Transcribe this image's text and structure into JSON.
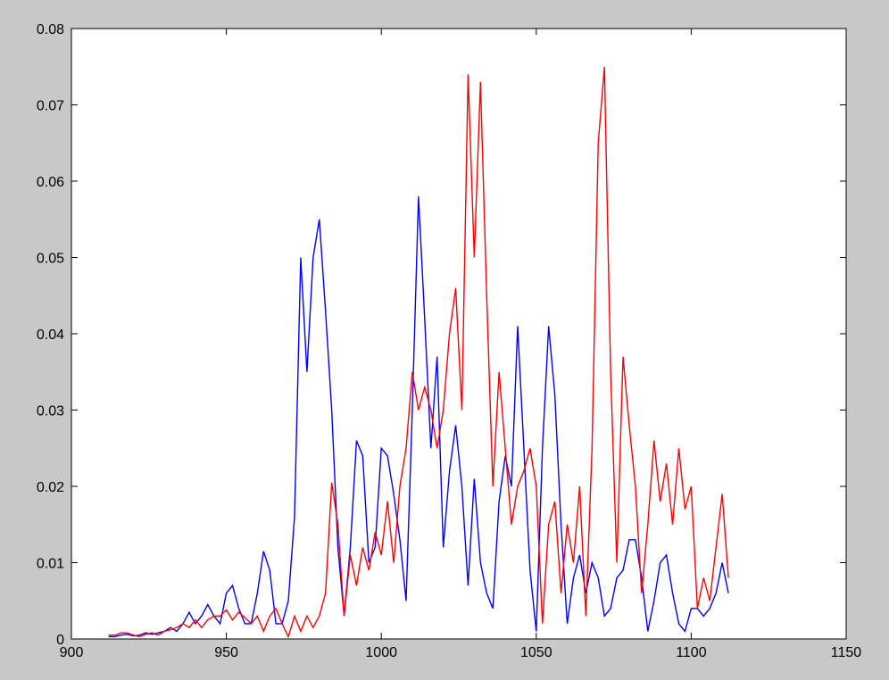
{
  "chart_data": {
    "type": "line",
    "x": [
      912,
      914,
      916,
      918,
      920,
      922,
      924,
      926,
      928,
      930,
      932,
      934,
      936,
      938,
      940,
      942,
      944,
      946,
      948,
      950,
      952,
      954,
      956,
      958,
      960,
      962,
      964,
      966,
      968,
      970,
      972,
      974,
      976,
      978,
      980,
      982,
      984,
      986,
      988,
      990,
      992,
      994,
      996,
      998,
      1000,
      1002,
      1004,
      1006,
      1008,
      1010,
      1012,
      1014,
      1016,
      1018,
      1020,
      1022,
      1024,
      1026,
      1028,
      1030,
      1032,
      1034,
      1036,
      1038,
      1040,
      1042,
      1044,
      1046,
      1048,
      1050,
      1052,
      1054,
      1056,
      1058,
      1060,
      1062,
      1064,
      1066,
      1068,
      1070,
      1072,
      1074,
      1076,
      1078,
      1080,
      1082,
      1084,
      1086,
      1088,
      1090,
      1092,
      1094,
      1096,
      1098,
      1100,
      1102,
      1104,
      1106,
      1108,
      1110,
      1112
    ],
    "series": [
      {
        "color": "#0000ff",
        "values": [
          0.0003,
          0.0003,
          0.0005,
          0.0006,
          0.0004,
          0.0005,
          0.0008,
          0.0006,
          0.0008,
          0.001,
          0.0015,
          0.001,
          0.002,
          0.0035,
          0.002,
          0.003,
          0.0045,
          0.003,
          0.002,
          0.006,
          0.007,
          0.004,
          0.002,
          0.002,
          0.006,
          0.0115,
          0.009,
          0.002,
          0.002,
          0.005,
          0.016,
          0.05,
          0.035,
          0.05,
          0.055,
          0.043,
          0.03,
          0.012,
          0.003,
          0.012,
          0.026,
          0.024,
          0.01,
          0.012,
          0.025,
          0.024,
          0.019,
          0.013,
          0.005,
          0.03,
          0.058,
          0.042,
          0.025,
          0.037,
          0.012,
          0.022,
          0.028,
          0.02,
          0.007,
          0.021,
          0.01,
          0.006,
          0.004,
          0.018,
          0.024,
          0.02,
          0.041,
          0.025,
          0.009,
          0.001,
          0.025,
          0.041,
          0.032,
          0.015,
          0.002,
          0.008,
          0.011,
          0.006,
          0.01,
          0.008,
          0.003,
          0.004,
          0.008,
          0.009,
          0.013,
          0.013,
          0.008,
          0.001,
          0.005,
          0.01,
          0.011,
          0.006,
          0.002,
          0.001,
          0.004,
          0.004,
          0.003,
          0.004,
          0.006,
          0.01,
          0.006
        ]
      },
      {
        "color": "#ff0000",
        "values": [
          0.0005,
          0.0005,
          0.0008,
          0.0008,
          0.0005,
          0.0003,
          0.0006,
          0.0008,
          0.0005,
          0.001,
          0.0012,
          0.0015,
          0.002,
          0.0015,
          0.0025,
          0.0015,
          0.0025,
          0.003,
          0.003,
          0.0038,
          0.0025,
          0.0035,
          0.0028,
          0.002,
          0.003,
          0.001,
          0.003,
          0.004,
          0.002,
          0.0003,
          0.003,
          0.001,
          0.003,
          0.0015,
          0.003,
          0.006,
          0.0205,
          0.015,
          0.003,
          0.011,
          0.007,
          0.012,
          0.009,
          0.014,
          0.011,
          0.018,
          0.01,
          0.02,
          0.025,
          0.035,
          0.03,
          0.033,
          0.03,
          0.025,
          0.03,
          0.04,
          0.046,
          0.03,
          0.074,
          0.05,
          0.073,
          0.045,
          0.02,
          0.035,
          0.025,
          0.015,
          0.02,
          0.022,
          0.025,
          0.02,
          0.002,
          0.015,
          0.018,
          0.006,
          0.015,
          0.01,
          0.02,
          0.003,
          0.025,
          0.065,
          0.075,
          0.035,
          0.01,
          0.037,
          0.028,
          0.02,
          0.006,
          0.015,
          0.026,
          0.018,
          0.023,
          0.015,
          0.025,
          0.017,
          0.02,
          0.004,
          0.008,
          0.005,
          0.012,
          0.019,
          0.008
        ]
      }
    ],
    "xlim": [
      900,
      1150
    ],
    "xticks": [
      900,
      950,
      1000,
      1050,
      1100,
      1150
    ],
    "ylim": [
      0,
      0.08
    ],
    "yticks": [
      0,
      0.01,
      0.02,
      0.03,
      0.04,
      0.05,
      0.06,
      0.07,
      0.08
    ],
    "grid": false
  }
}
